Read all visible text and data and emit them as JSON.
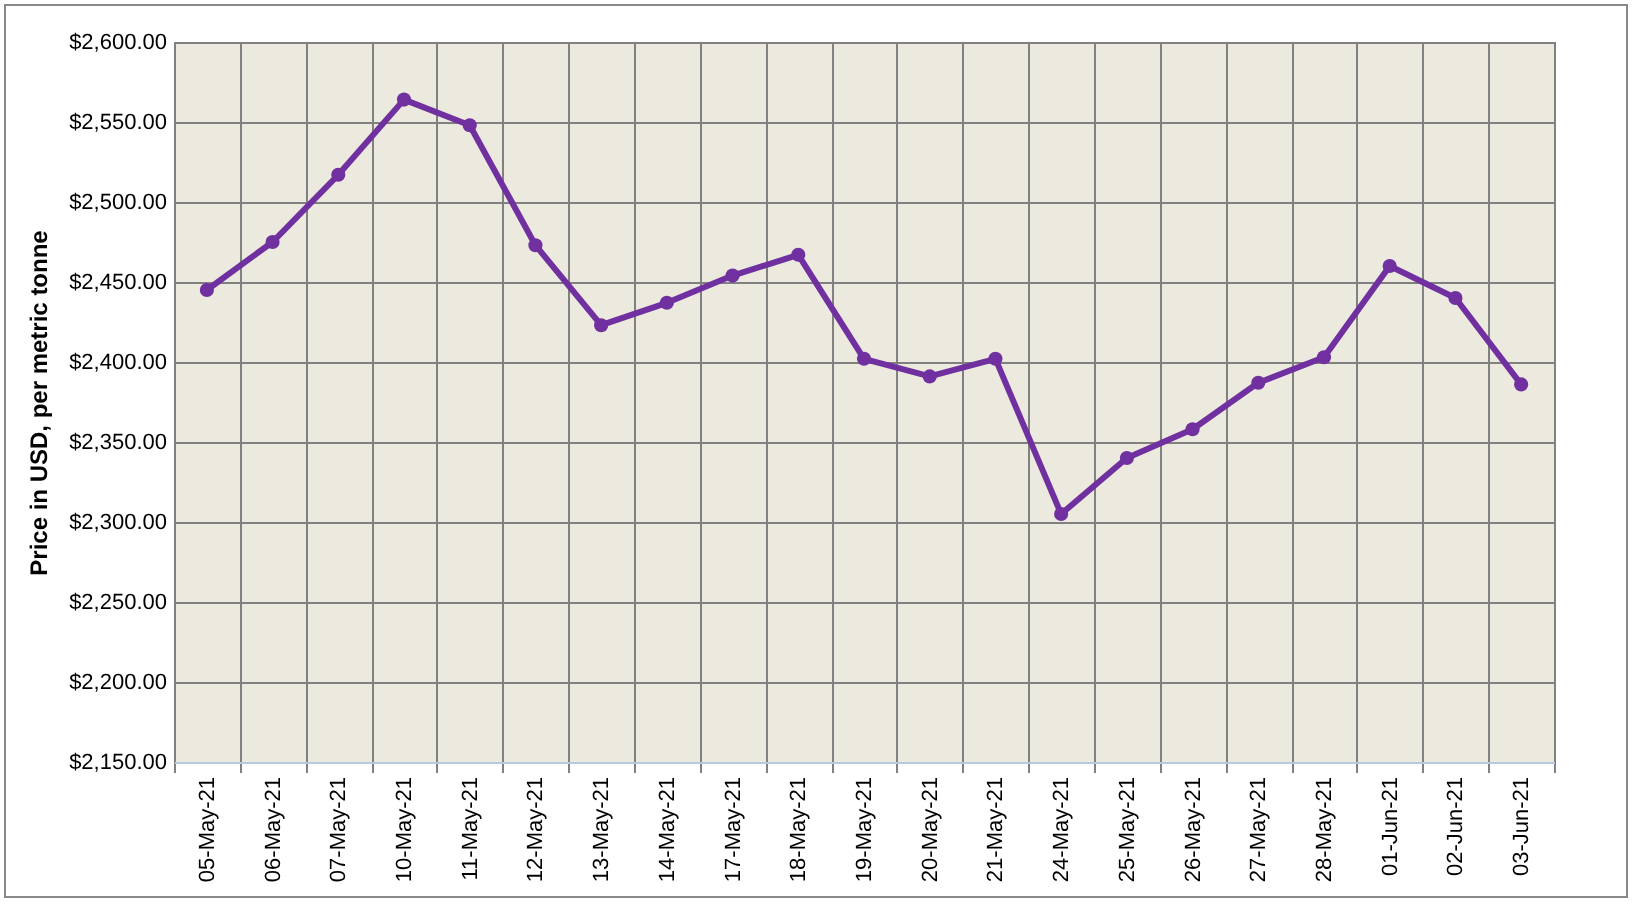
{
  "chart_data": {
    "type": "line",
    "ylabel": "Price in USD, per metric tonne",
    "categories": [
      "05-May-21",
      "06-May-21",
      "07-May-21",
      "10-May-21",
      "11-May-21",
      "12-May-21",
      "13-May-21",
      "14-May-21",
      "17-May-21",
      "18-May-21",
      "19-May-21",
      "20-May-21",
      "21-May-21",
      "24-May-21",
      "25-May-21",
      "26-May-21",
      "27-May-21",
      "28-May-21",
      "01-Jun-21",
      "02-Jun-21",
      "03-Jun-21"
    ],
    "series": [
      {
        "color": "#7030a0",
        "values": [
          2445,
          2475,
          2517,
          2564,
          2548,
          2473,
          2423,
          2437,
          2454,
          2467,
          2402,
          2391,
          2402,
          2305,
          2340,
          2358,
          2387,
          2403,
          2460,
          2440,
          2386
        ]
      }
    ],
    "ylim": [
      2150,
      2600
    ],
    "yticks": [
      {
        "value": 2150,
        "label": "$2,150.00"
      },
      {
        "value": 2200,
        "label": "$2,200.00"
      },
      {
        "value": 2250,
        "label": "$2,250.00"
      },
      {
        "value": 2300,
        "label": "$2,300.00"
      },
      {
        "value": 2350,
        "label": "$2,350.00"
      },
      {
        "value": 2400,
        "label": "$2,400.00"
      },
      {
        "value": 2450,
        "label": "$2,450.00"
      },
      {
        "value": 2500,
        "label": "$2,500.00"
      },
      {
        "value": 2550,
        "label": "$2,550.00"
      },
      {
        "value": 2600,
        "label": "$2,600.00"
      }
    ],
    "grid": true,
    "marker": "circle",
    "line_style": "solid"
  }
}
